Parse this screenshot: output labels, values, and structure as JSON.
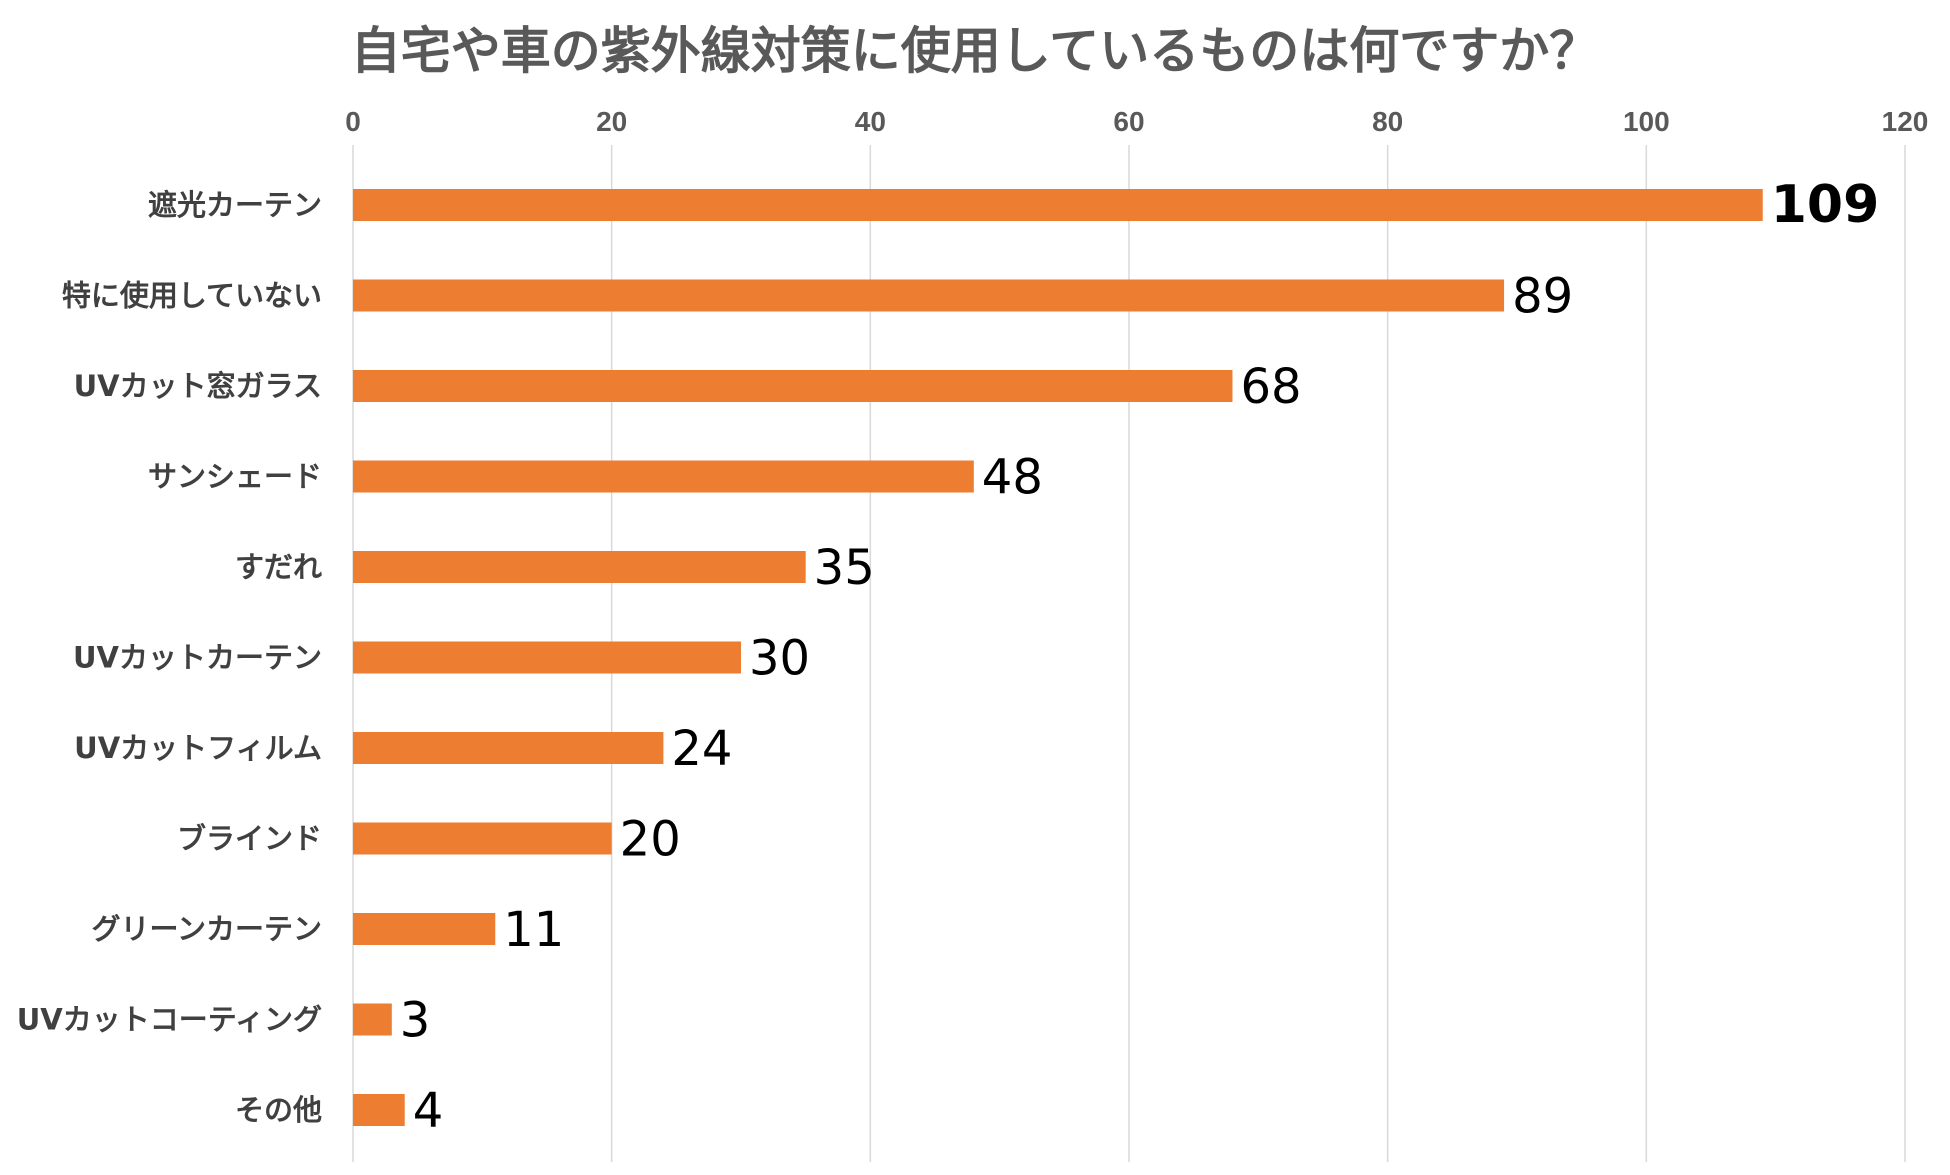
{
  "chart_data": {
    "type": "bar",
    "orientation": "horizontal",
    "title": "自宅や車の紫外線対策に使用しているものは何ですか？",
    "categories": [
      "遮光カーテン",
      "特に使用していない",
      "UVカット窓ガラス",
      "サンシェード",
      "すだれ",
      "UVカットカーテン",
      "UVカットフィルム",
      "ブラインド",
      "グリーンカーテン",
      "UVカットコーティング",
      "その他"
    ],
    "values": [
      109,
      89,
      68,
      48,
      35,
      30,
      24,
      20,
      11,
      3,
      4
    ],
    "value_labels": [
      "109",
      "89",
      "68",
      "48",
      "35",
      "30",
      "24",
      "20",
      "11",
      "3",
      "4"
    ],
    "xlim": [
      0,
      120
    ],
    "x_ticks": [
      0,
      20,
      40,
      60,
      80,
      100,
      120
    ],
    "x_tick_labels": [
      "0",
      "20",
      "40",
      "60",
      "80",
      "100",
      "120"
    ],
    "x_axis_position": "top",
    "grid": "vertical",
    "legend": "none",
    "bar_color": "#ED7D31",
    "gridline_color": "#D9D9D9",
    "text_color": "#595959"
  }
}
